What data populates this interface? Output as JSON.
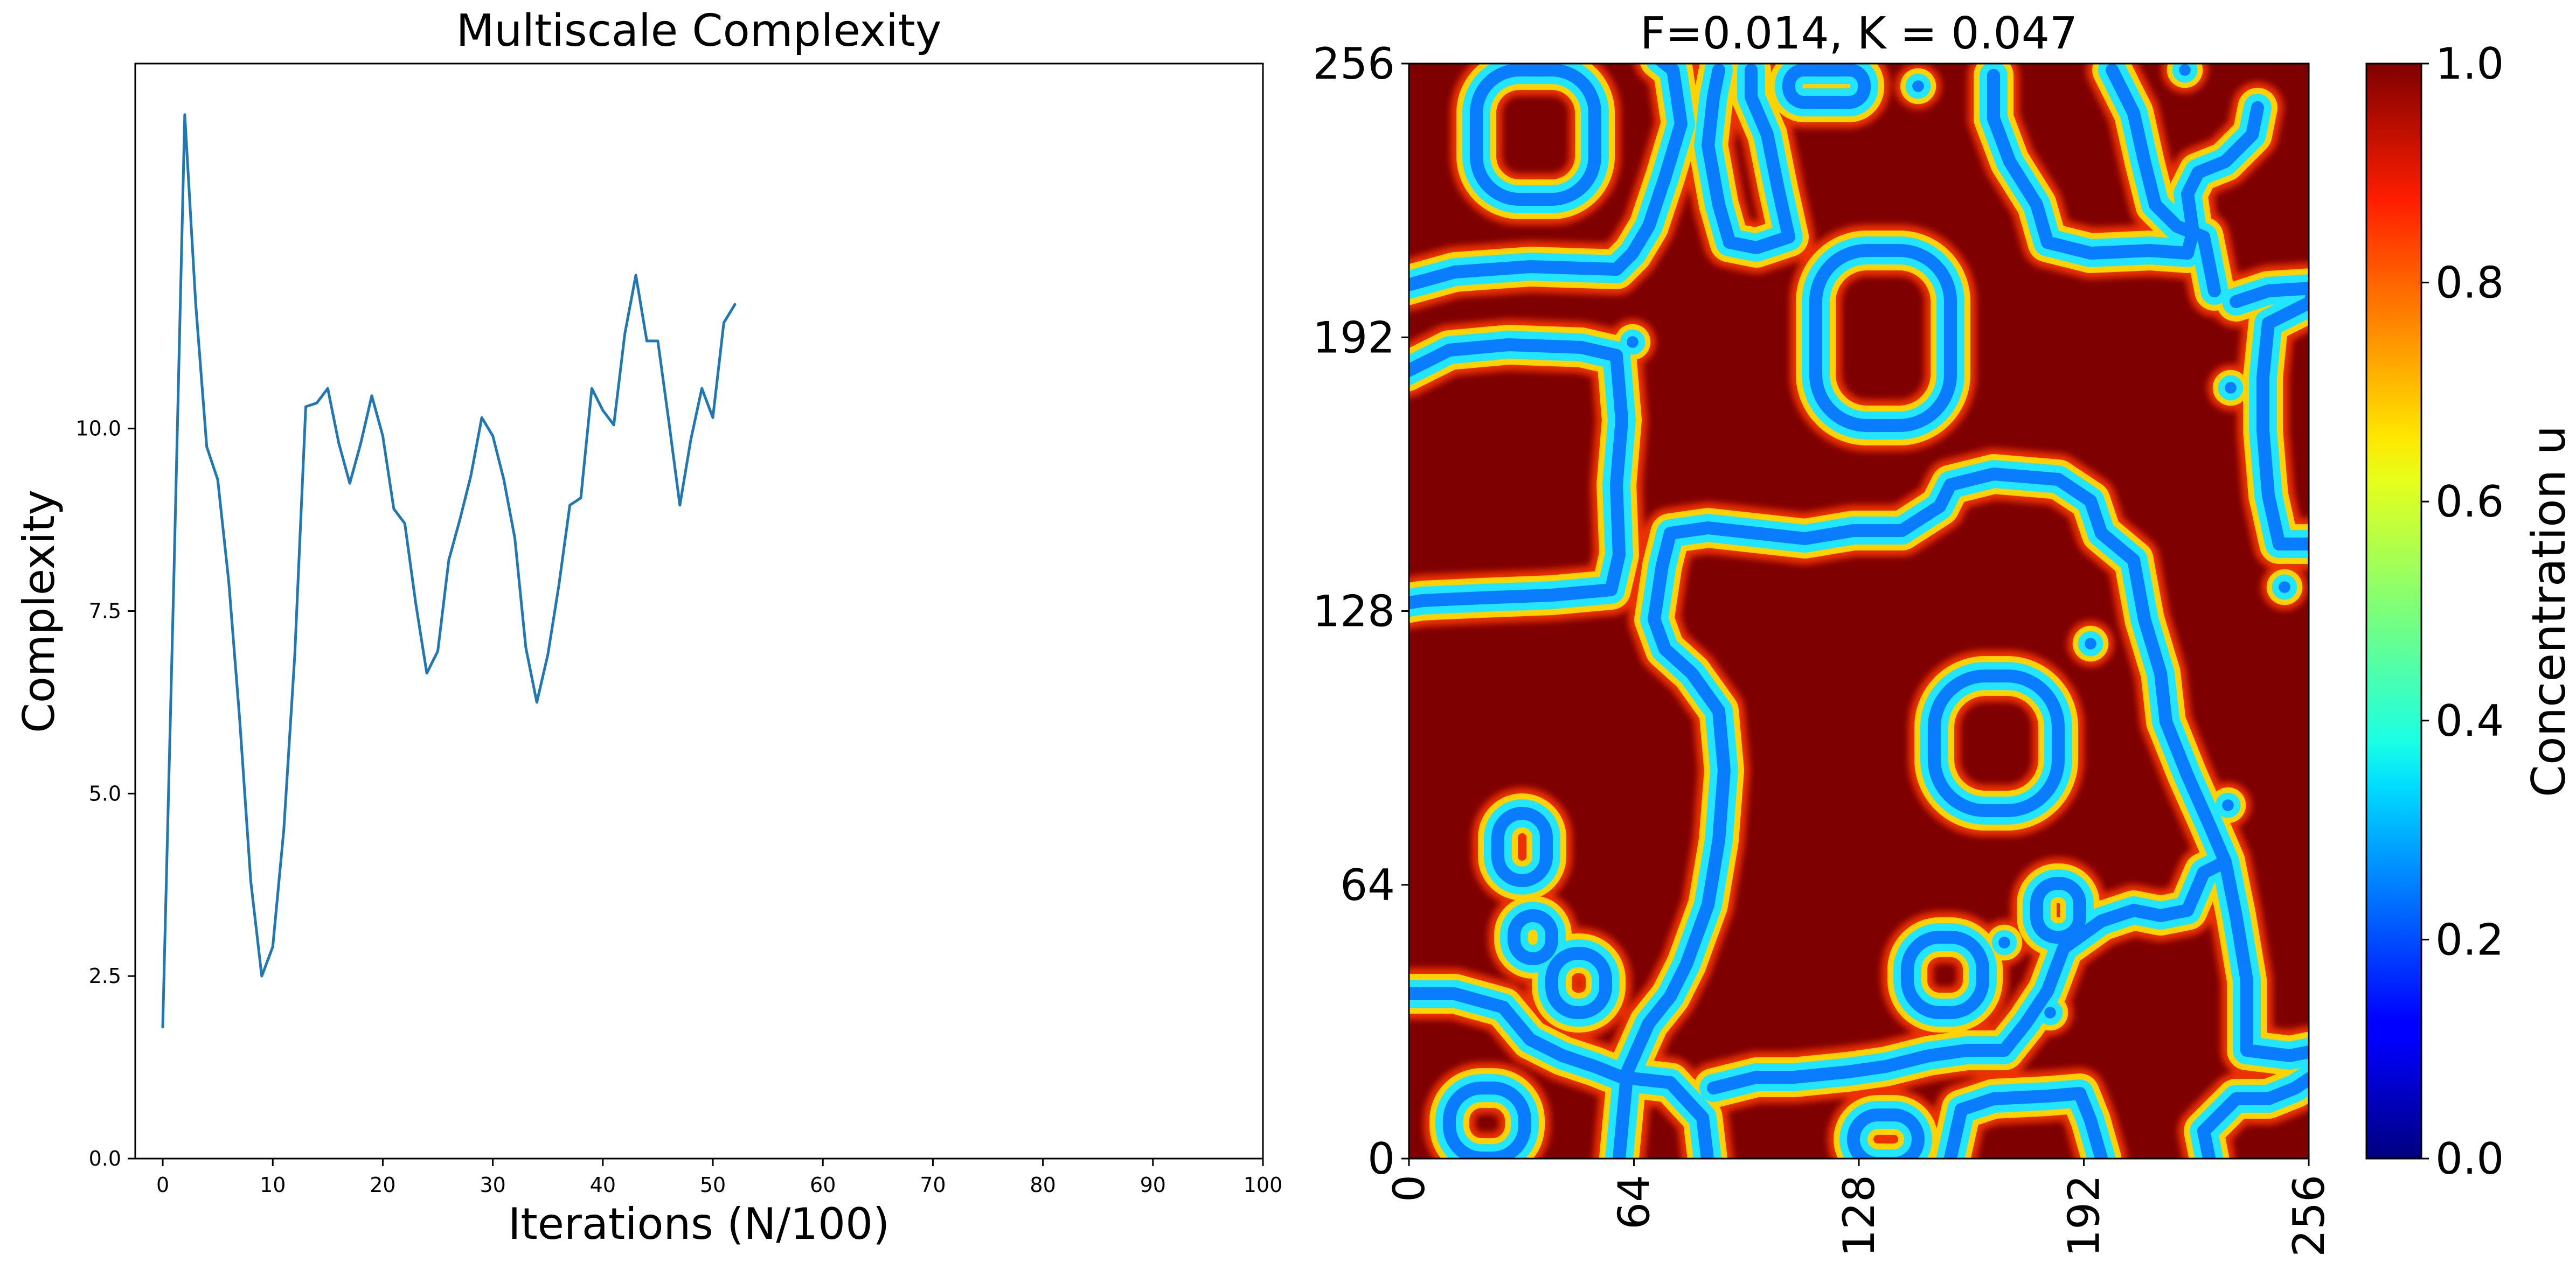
{
  "chart_data": [
    {
      "type": "line",
      "title": "Multiscale Complexity",
      "xlabel": "Iterations (N/100)",
      "ylabel": "Complexity",
      "xlim": [
        -2.5,
        100
      ],
      "ylim": [
        0,
        15
      ],
      "x_ticks": [
        "0",
        "10",
        "20",
        "30",
        "40",
        "50",
        "60",
        "70",
        "80",
        "90",
        "100"
      ],
      "y_ticks": [
        "0.0",
        "2.5",
        "5.0",
        "7.5",
        "10.0"
      ],
      "grid": false,
      "series": [
        {
          "color": "#1f77b4",
          "x": [
            0,
            1,
            2,
            3,
            4,
            5,
            6,
            7,
            8,
            9,
            10,
            11,
            12,
            13,
            14,
            15,
            16,
            17,
            18,
            19,
            20,
            21,
            22,
            23,
            24,
            25,
            26,
            27,
            28,
            29,
            30,
            31,
            32,
            33,
            34,
            35,
            36,
            37,
            38,
            39,
            40,
            41,
            42,
            43,
            44,
            45,
            46,
            47,
            48,
            49,
            50,
            51,
            52
          ],
          "y": [
            1.8,
            7.9,
            14.3,
            11.7,
            9.75,
            9.3,
            7.9,
            6.0,
            3.8,
            2.5,
            2.9,
            4.5,
            6.9,
            10.3,
            10.35,
            10.55,
            9.8,
            9.25,
            9.8,
            10.45,
            9.9,
            8.9,
            8.7,
            7.6,
            6.65,
            6.95,
            8.2,
            8.75,
            9.35,
            10.15,
            9.9,
            9.3,
            8.5,
            7.0,
            6.25,
            6.9,
            7.85,
            8.95,
            9.05,
            10.55,
            10.25,
            10.05,
            11.3,
            12.1,
            11.2,
            11.2,
            10.1,
            8.95,
            9.85,
            10.55,
            10.15,
            11.45,
            11.7
          ]
        }
      ]
    },
    {
      "type": "heatmap",
      "title": "F=0.014, K = 0.047",
      "xlim": [
        0,
        256
      ],
      "ylim": [
        0,
        256
      ],
      "x_ticks": [
        "0",
        "64",
        "128",
        "192",
        "256"
      ],
      "y_ticks": [
        "0",
        "64",
        "128",
        "192",
        "256"
      ],
      "colormap": "jet",
      "colorbar": {
        "label": "Concentration u",
        "range": [
          0,
          1
        ],
        "ticks": [
          "0.0",
          "0.2",
          "0.4",
          "0.6",
          "0.8",
          "1.0"
        ]
      },
      "background_color": "#7f0000",
      "stripe_colors": [
        "#ff3b00",
        "#ffd200",
        "#22e6ff",
        "#0a7cff"
      ]
    }
  ]
}
